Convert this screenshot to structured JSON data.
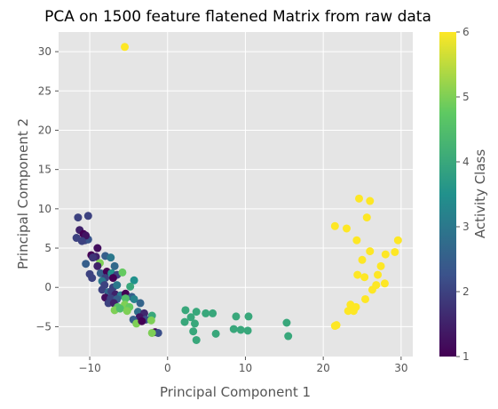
{
  "chart_data": {
    "type": "scatter",
    "title": "PCA on 1500 feature flatened Matrix from raw data",
    "xlabel": "Principal Component 1",
    "ylabel": "Principal Component 2",
    "xlim": [
      -14,
      31.5
    ],
    "ylim": [
      -8.8,
      32.5
    ],
    "xticks": [
      "−10",
      "0",
      "10",
      "20",
      "30"
    ],
    "yticks": [
      "−5",
      "0",
      "5",
      "10",
      "15",
      "20",
      "25",
      "30"
    ],
    "grid": true,
    "colorbar": {
      "label": "Activity Class",
      "range": [
        1,
        6
      ],
      "ticks": [
        "1",
        "2",
        "3",
        "4",
        "5",
        "6"
      ],
      "colormap": [
        "#440154",
        "#3b528b",
        "#21918c",
        "#5ec962",
        "#fde725"
      ]
    },
    "colors": {
      "background": "#e5e5e5",
      "grid": "#ffffff"
    },
    "points": [
      {
        "x": -5.5,
        "y": 30.6,
        "c": 6
      },
      {
        "x": 21.5,
        "y": 7.8,
        "c": 6
      },
      {
        "x": 23.0,
        "y": 7.5,
        "c": 6
      },
      {
        "x": 24.6,
        "y": 11.3,
        "c": 6
      },
      {
        "x": 26.0,
        "y": 11.0,
        "c": 6
      },
      {
        "x": 25.6,
        "y": 8.9,
        "c": 6
      },
      {
        "x": 24.3,
        "y": 6.0,
        "c": 6
      },
      {
        "x": 29.6,
        "y": 6.0,
        "c": 6
      },
      {
        "x": 26.0,
        "y": 4.6,
        "c": 6
      },
      {
        "x": 28.0,
        "y": 4.2,
        "c": 6
      },
      {
        "x": 29.2,
        "y": 4.5,
        "c": 6
      },
      {
        "x": 25.0,
        "y": 3.5,
        "c": 6
      },
      {
        "x": 27.4,
        "y": 2.7,
        "c": 6
      },
      {
        "x": 24.4,
        "y": 1.6,
        "c": 6
      },
      {
        "x": 27.0,
        "y": 1.6,
        "c": 6
      },
      {
        "x": 25.3,
        "y": 1.3,
        "c": 6
      },
      {
        "x": 27.9,
        "y": 0.5,
        "c": 6
      },
      {
        "x": 26.8,
        "y": 0.3,
        "c": 6
      },
      {
        "x": 26.3,
        "y": -0.3,
        "c": 6
      },
      {
        "x": 25.4,
        "y": -1.5,
        "c": 6
      },
      {
        "x": 23.5,
        "y": -2.2,
        "c": 6
      },
      {
        "x": 24.2,
        "y": -2.5,
        "c": 6
      },
      {
        "x": 23.2,
        "y": -3.0,
        "c": 6
      },
      {
        "x": 23.9,
        "y": -3.0,
        "c": 6
      },
      {
        "x": 21.7,
        "y": -4.8,
        "c": 6
      },
      {
        "x": 21.5,
        "y": -4.9,
        "c": 6
      },
      {
        "x": 2.3,
        "y": -2.9,
        "c": 4
      },
      {
        "x": 3.7,
        "y": -3.1,
        "c": 4
      },
      {
        "x": 4.9,
        "y": -3.3,
        "c": 4
      },
      {
        "x": 5.8,
        "y": -3.3,
        "c": 4
      },
      {
        "x": 2.2,
        "y": -4.4,
        "c": 4
      },
      {
        "x": 3.0,
        "y": -3.8,
        "c": 4
      },
      {
        "x": 3.5,
        "y": -4.6,
        "c": 4
      },
      {
        "x": 3.3,
        "y": -5.6,
        "c": 4
      },
      {
        "x": 3.7,
        "y": -6.7,
        "c": 4
      },
      {
        "x": 6.2,
        "y": -5.9,
        "c": 4
      },
      {
        "x": 8.8,
        "y": -3.7,
        "c": 4
      },
      {
        "x": 10.4,
        "y": -3.7,
        "c": 4
      },
      {
        "x": 8.5,
        "y": -5.3,
        "c": 4
      },
      {
        "x": 9.4,
        "y": -5.4,
        "c": 4
      },
      {
        "x": 10.3,
        "y": -5.5,
        "c": 4
      },
      {
        "x": 15.3,
        "y": -4.5,
        "c": 4
      },
      {
        "x": 15.5,
        "y": -6.2,
        "c": 4
      },
      {
        "x": -11.5,
        "y": 8.9,
        "c": 2
      },
      {
        "x": -10.2,
        "y": 9.1,
        "c": 2
      },
      {
        "x": -11.7,
        "y": 6.3,
        "c": 2
      },
      {
        "x": -11.3,
        "y": 7.3,
        "c": 1.5
      },
      {
        "x": -10.8,
        "y": 6.8,
        "c": 1
      },
      {
        "x": -10.6,
        "y": 6.0,
        "c": 2
      },
      {
        "x": -10.2,
        "y": 6.1,
        "c": 2.3
      },
      {
        "x": -10.5,
        "y": 6.6,
        "c": 1.3
      },
      {
        "x": -11.0,
        "y": 5.9,
        "c": 2
      },
      {
        "x": -9.0,
        "y": 5.0,
        "c": 1.2
      },
      {
        "x": -9.8,
        "y": 4.1,
        "c": 1
      },
      {
        "x": -9.2,
        "y": 3.9,
        "c": 1.5
      },
      {
        "x": -9.6,
        "y": 3.8,
        "c": 1.8
      },
      {
        "x": -8.0,
        "y": 4.0,
        "c": 2.5
      },
      {
        "x": -7.3,
        "y": 3.8,
        "c": 3
      },
      {
        "x": -8.7,
        "y": 3.1,
        "c": 5
      },
      {
        "x": -10.5,
        "y": 3.0,
        "c": 2.5
      },
      {
        "x": -9.0,
        "y": 2.7,
        "c": 1.5
      },
      {
        "x": -10.0,
        "y": 1.7,
        "c": 2
      },
      {
        "x": -9.7,
        "y": 1.2,
        "c": 2
      },
      {
        "x": -8.6,
        "y": 1.8,
        "c": 2.5
      },
      {
        "x": -7.8,
        "y": 2.0,
        "c": 1
      },
      {
        "x": -7.2,
        "y": 1.8,
        "c": 3.5
      },
      {
        "x": -6.5,
        "y": 1.6,
        "c": 2
      },
      {
        "x": -6.8,
        "y": 2.7,
        "c": 2.7
      },
      {
        "x": -5.8,
        "y": 1.9,
        "c": 4.8
      },
      {
        "x": -8.0,
        "y": 1.2,
        "c": 2
      },
      {
        "x": -8.4,
        "y": 0.8,
        "c": 3
      },
      {
        "x": -7.0,
        "y": 1.2,
        "c": 1
      },
      {
        "x": -8.1,
        "y": 0.3,
        "c": 2
      },
      {
        "x": -7.0,
        "y": 0.0,
        "c": 2
      },
      {
        "x": -6.5,
        "y": 0.3,
        "c": 3
      },
      {
        "x": -4.3,
        "y": 0.9,
        "c": 3.5
      },
      {
        "x": -4.8,
        "y": 0.1,
        "c": 4
      },
      {
        "x": -8.4,
        "y": -0.3,
        "c": 2
      },
      {
        "x": -7.6,
        "y": -0.6,
        "c": 2.7
      },
      {
        "x": -7.2,
        "y": -0.5,
        "c": 2
      },
      {
        "x": -6.7,
        "y": -0.9,
        "c": 1.5
      },
      {
        "x": -6.0,
        "y": -1.0,
        "c": 3
      },
      {
        "x": -5.4,
        "y": -0.8,
        "c": 1
      },
      {
        "x": -4.6,
        "y": -1.2,
        "c": 2.5
      },
      {
        "x": -8.0,
        "y": -1.3,
        "c": 1.2
      },
      {
        "x": -7.3,
        "y": -1.4,
        "c": 2
      },
      {
        "x": -6.5,
        "y": -1.5,
        "c": 2.5
      },
      {
        "x": -5.4,
        "y": -1.4,
        "c": 4.5
      },
      {
        "x": -4.3,
        "y": -1.5,
        "c": 3.2
      },
      {
        "x": -7.6,
        "y": -2.0,
        "c": 2
      },
      {
        "x": -6.9,
        "y": -2.0,
        "c": 1.5
      },
      {
        "x": -6.4,
        "y": -2.5,
        "c": 4.6
      },
      {
        "x": -5.5,
        "y": -2.2,
        "c": 5
      },
      {
        "x": -4.9,
        "y": -2.5,
        "c": 4.8
      },
      {
        "x": -3.5,
        "y": -2.0,
        "c": 2.6
      },
      {
        "x": -6.8,
        "y": -2.9,
        "c": 5
      },
      {
        "x": -6.1,
        "y": -2.7,
        "c": 4.5
      },
      {
        "x": -5.2,
        "y": -3.0,
        "c": 5
      },
      {
        "x": -3.8,
        "y": -3.1,
        "c": 2.8
      },
      {
        "x": -3.0,
        "y": -3.3,
        "c": 1.6
      },
      {
        "x": -2.0,
        "y": -3.6,
        "c": 4
      },
      {
        "x": -3.6,
        "y": -3.8,
        "c": 1.3
      },
      {
        "x": -4.4,
        "y": -4.1,
        "c": 2.5
      },
      {
        "x": -2.8,
        "y": -4.1,
        "c": 2.2
      },
      {
        "x": -2.1,
        "y": -4.2,
        "c": 5
      },
      {
        "x": -4.0,
        "y": -4.6,
        "c": 5
      },
      {
        "x": -3.3,
        "y": -4.3,
        "c": 1
      },
      {
        "x": -1.6,
        "y": -5.7,
        "c": 1
      },
      {
        "x": -1.2,
        "y": -5.8,
        "c": 2.2
      },
      {
        "x": -2.0,
        "y": -5.8,
        "c": 5
      }
    ]
  }
}
